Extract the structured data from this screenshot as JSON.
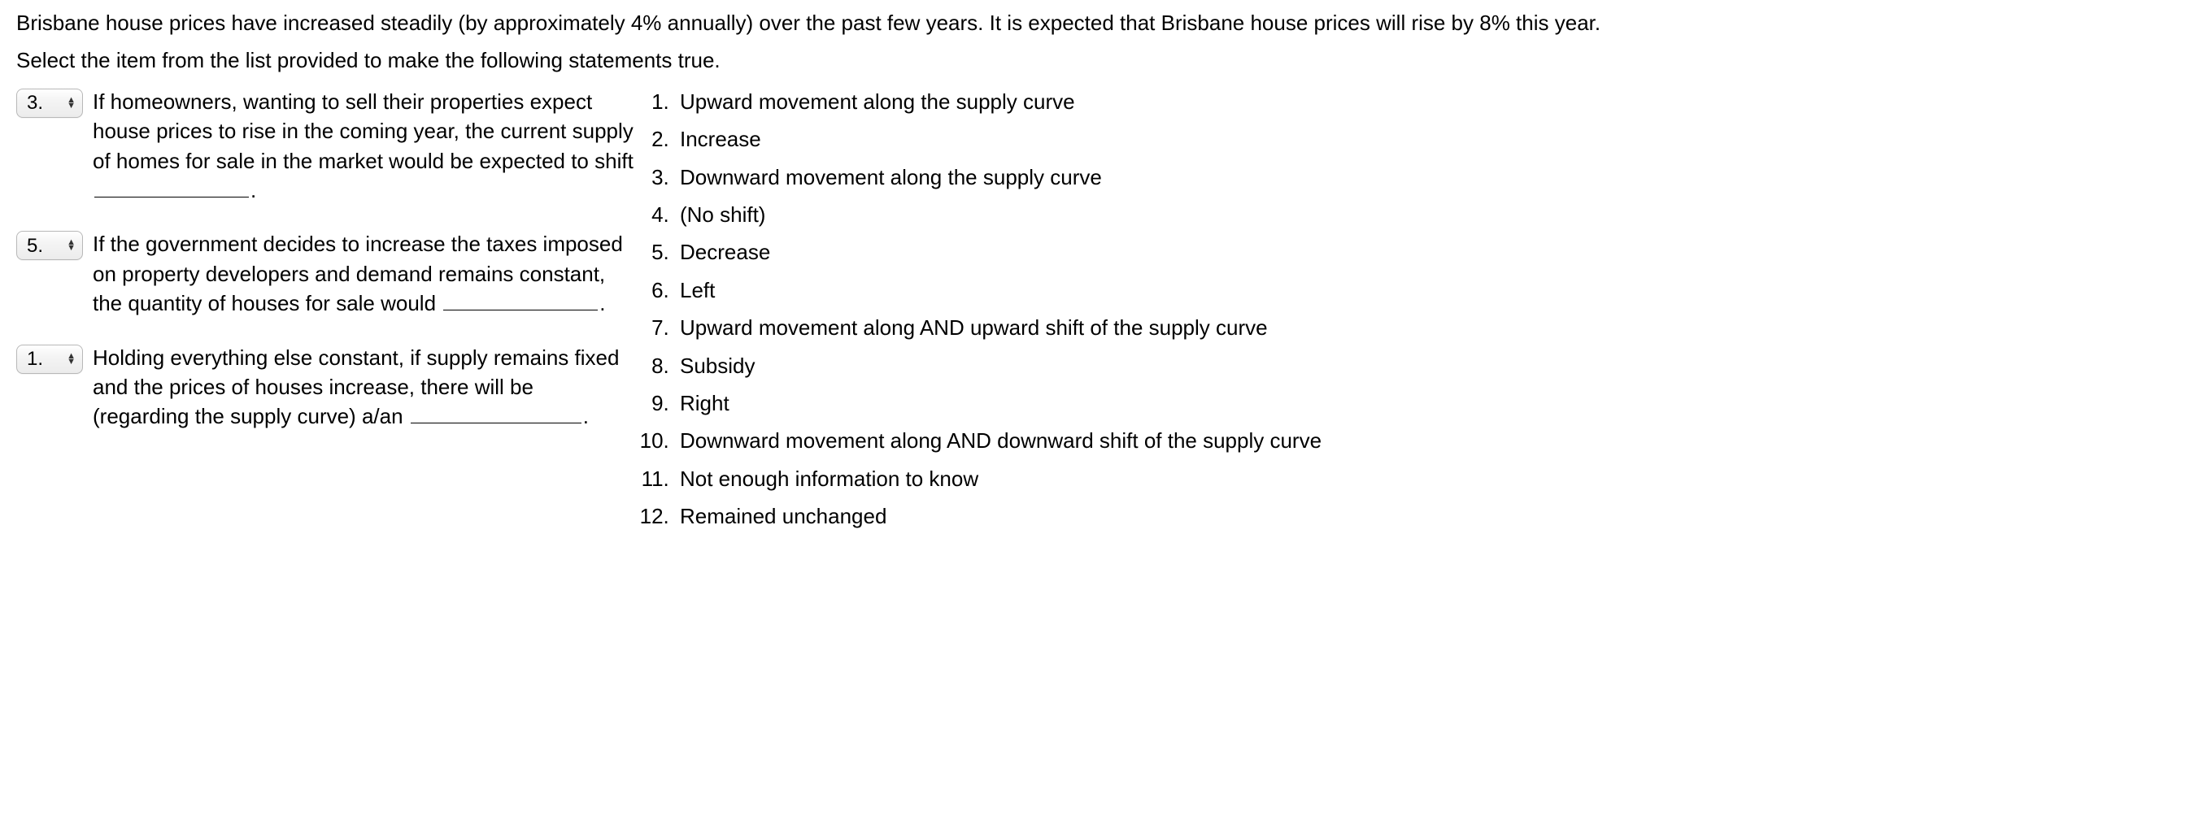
{
  "intro": {
    "p1": "Brisbane house prices have increased steadily (by approximately 4% annually) over the past few years. It is expected that Brisbane house prices will rise by 8% this year.",
    "p2": "Select the item from the list provided to make the following statements true."
  },
  "questions": [
    {
      "selected": "3.",
      "text_before": "If homeowners, wanting to sell their properties expect house prices to rise in the coming year, the current supply of homes for sale in the market would be expected to shift ",
      "text_after": "."
    },
    {
      "selected": "5.",
      "text_before": "If the government decides to increase the taxes imposed on property developers and demand remains constant, the quantity of houses for sale would ",
      "text_after": "."
    },
    {
      "selected": "1.",
      "text_before": "Holding everything else constant, if supply remains fixed and the prices of houses increase, there will be (regarding the supply curve) a/an ",
      "text_after": "."
    }
  ],
  "options": [
    "Upward movement along the supply curve",
    "Increase",
    "Downward movement along the supply curve",
    "(No shift)",
    "Decrease",
    "Left",
    "Upward movement along AND upward shift of the supply curve",
    "Subsidy",
    "Right",
    "Downward movement along AND downward shift of the supply curve",
    "Not enough information to know",
    "Remained unchanged"
  ]
}
